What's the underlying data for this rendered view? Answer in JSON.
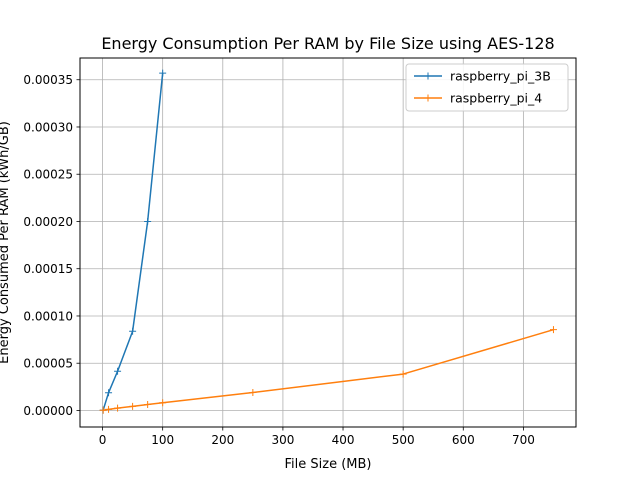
{
  "chart_data": {
    "type": "line",
    "title": "Energy Consumption Per RAM by File Size using AES-128",
    "xlabel": "File Size (MB)",
    "ylabel": "Energy Consumed Per RAM (kWh/GB)",
    "xlim": [
      -37.5,
      787.5
    ],
    "ylim": [
      -1.75e-05,
      0.000373
    ],
    "x_ticks": [
      0,
      100,
      200,
      300,
      400,
      500,
      600,
      700
    ],
    "x_tick_labels": [
      "0",
      "100",
      "200",
      "300",
      "400",
      "500",
      "600",
      "700"
    ],
    "y_ticks": [
      0,
      5e-05,
      0.0001,
      0.00015,
      0.0002,
      0.00025,
      0.0003,
      0.00035
    ],
    "y_tick_labels": [
      "0.00000",
      "0.00005",
      "0.00010",
      "0.00015",
      "0.00020",
      "0.00025",
      "0.00030",
      "0.00035"
    ],
    "grid": true,
    "legend_position": "top-right",
    "marker": "+",
    "series": [
      {
        "name": "raspberry_pi_3B",
        "color": "#1f77b4",
        "x": [
          1,
          10,
          25,
          50,
          75,
          100
        ],
        "y": [
          3e-07,
          1.88e-05,
          4.15e-05,
          8.38e-05,
          0.0002,
          0.000357
        ]
      },
      {
        "name": "raspberry_pi_4",
        "color": "#ff7f0e",
        "x": [
          1,
          10,
          25,
          50,
          75,
          100,
          250,
          500,
          750
        ],
        "y": [
          2e-07,
          1.1e-06,
          2.5e-06,
          4.3e-06,
          6.3e-06,
          8.2e-06,
          1.9e-05,
          3.85e-05,
          8.55e-05
        ]
      }
    ]
  }
}
